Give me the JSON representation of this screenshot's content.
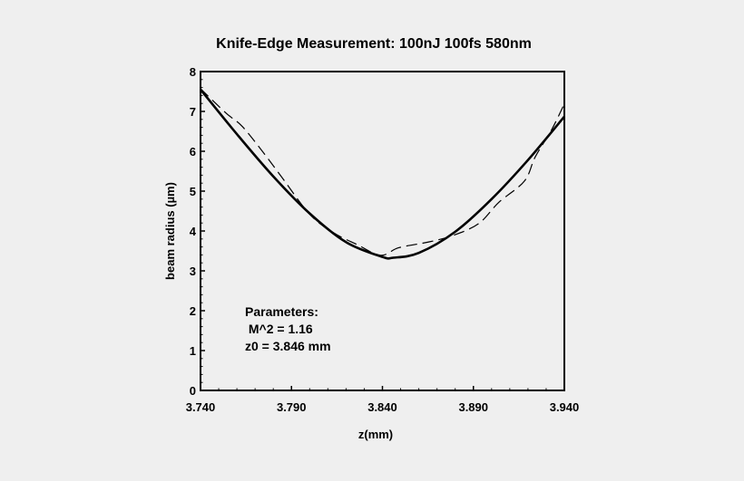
{
  "chart_data": {
    "type": "line",
    "title": "Knife-Edge Measurement: 100nJ 100fs 580nm",
    "xlabel": "z(mm)",
    "ylabel": "beam radius (µm)",
    "xlim": [
      3.74,
      3.94
    ],
    "ylim": [
      0,
      8
    ],
    "xticks": [
      "3.740",
      "3.790",
      "3.840",
      "3.890",
      "3.940"
    ],
    "xtick_values": [
      3.74,
      3.79,
      3.84,
      3.89,
      3.94
    ],
    "yticks": [
      "0",
      "1",
      "2",
      "3",
      "4",
      "5",
      "6",
      "7",
      "8"
    ],
    "grid": false,
    "annotation": [
      "Parameters:",
      " M^2 = 1.16",
      "z0 = 3.846 mm"
    ],
    "series": [
      {
        "style": "solid",
        "x": [
          3.74,
          3.76,
          3.78,
          3.8,
          3.82,
          3.84,
          3.846,
          3.86,
          3.88,
          3.9,
          3.92,
          3.94
        ],
        "y": [
          7.55,
          6.43,
          5.37,
          4.44,
          3.72,
          3.35,
          3.33,
          3.45,
          3.98,
          4.8,
          5.78,
          6.87
        ]
      },
      {
        "style": "dashed",
        "x": [
          3.74,
          3.754,
          3.763,
          3.775,
          3.785,
          3.8,
          3.813,
          3.826,
          3.839,
          3.849,
          3.866,
          3.879,
          3.893,
          3.904,
          3.918,
          3.924,
          3.933,
          3.94
        ],
        "y": [
          7.57,
          6.96,
          6.62,
          5.94,
          5.33,
          4.42,
          3.96,
          3.66,
          3.39,
          3.58,
          3.73,
          3.89,
          4.19,
          4.72,
          5.25,
          5.86,
          6.54,
          7.19
        ]
      }
    ]
  }
}
